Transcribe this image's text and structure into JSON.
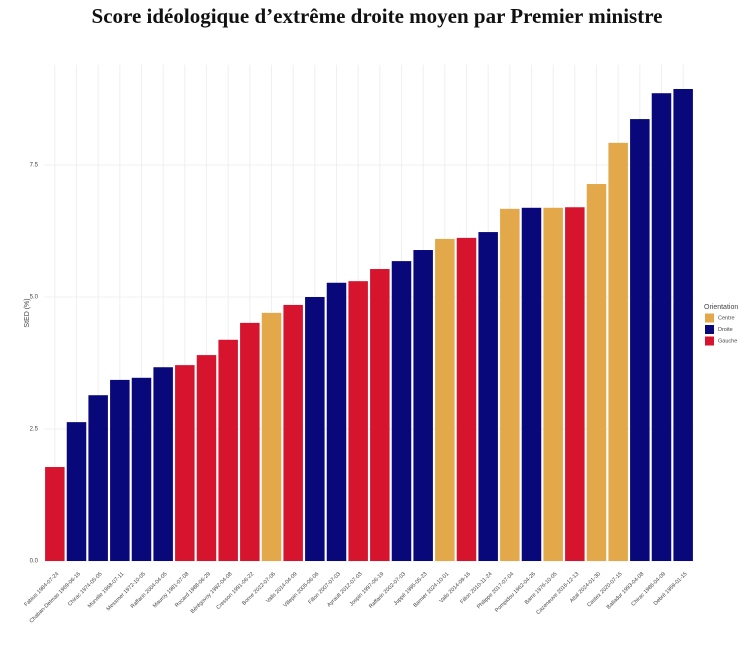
{
  "chart_data": {
    "type": "bar",
    "title": "Score idéologique d’extrême droite moyen par Premier ministre",
    "ylabel": "StED (%)",
    "categories": [
      "Fabius 1984-07-24",
      "Chaban-Delmas 1969-06-16",
      "Chirac 1974-05-05",
      "Murville 1968-07-11",
      "Messmer 1972-10-05",
      "Raffarin 2004-04-05",
      "Mauroy 1981-07-08",
      "Rocard 1988-06-29",
      "Bérégovoy 1992-04-08",
      "Cresson 1991-06-22",
      "Borne 2022-07-06",
      "Valls 2014-04-09",
      "Villepin 2005-06-06",
      "Fillon 2007-07-03",
      "Ayrault 2012-07-03",
      "Jospin 1997-06-19",
      "Raffarin 2002-07-03",
      "Juppé 1995-05-23",
      "Barnier 2024-10-01",
      "Valls 2014-09-16",
      "Fillon 2010-11-24",
      "Philippe 2017-07-04",
      "Pompidou 1962-04-26",
      "Barre 1976-10-05",
      "Cazeneuve 2016-12-13",
      "Attal 2024-01-30",
      "Castex 2020-07-15",
      "Balladur 1993-04-08",
      "Chirac 1986-04-09",
      "Debré 1959-01-15"
    ],
    "values": [
      1.78,
      2.63,
      3.14,
      3.43,
      3.47,
      3.67,
      3.71,
      3.9,
      4.19,
      4.51,
      4.7,
      4.85,
      5.0,
      5.27,
      5.3,
      5.53,
      5.68,
      5.89,
      6.1,
      6.12,
      6.23,
      6.67,
      6.69,
      6.69,
      6.7,
      7.14,
      7.92,
      8.37,
      8.86,
      8.94
    ],
    "colors": [
      "#d7142e",
      "#08087a",
      "#08087a",
      "#08087a",
      "#08087a",
      "#08087a",
      "#d7142e",
      "#d7142e",
      "#d7142e",
      "#d7142e",
      "#e3a84a",
      "#d7142e",
      "#08087a",
      "#08087a",
      "#d7142e",
      "#d7142e",
      "#08087a",
      "#08087a",
      "#e3a84a",
      "#d7142e",
      "#08087a",
      "#e3a84a",
      "#08087a",
      "#e3a84a",
      "#d7142e",
      "#e3a84a",
      "#e3a84a",
      "#08087a",
      "#08087a",
      "#08087a"
    ],
    "ylim": [
      0,
      9.4
    ],
    "yticks": [
      {
        "value": 0,
        "label": "0.0"
      },
      2.5,
      {
        "value": 5,
        "label": "5.0"
      },
      7.5
    ],
    "grid": true,
    "legend": {
      "title": "Orientation",
      "items": [
        {
          "name": "Centre",
          "color": "#e3a84a"
        },
        {
          "name": "Droite",
          "color": "#08087a"
        },
        {
          "name": "Gauche",
          "color": "#d7142e"
        }
      ]
    }
  }
}
